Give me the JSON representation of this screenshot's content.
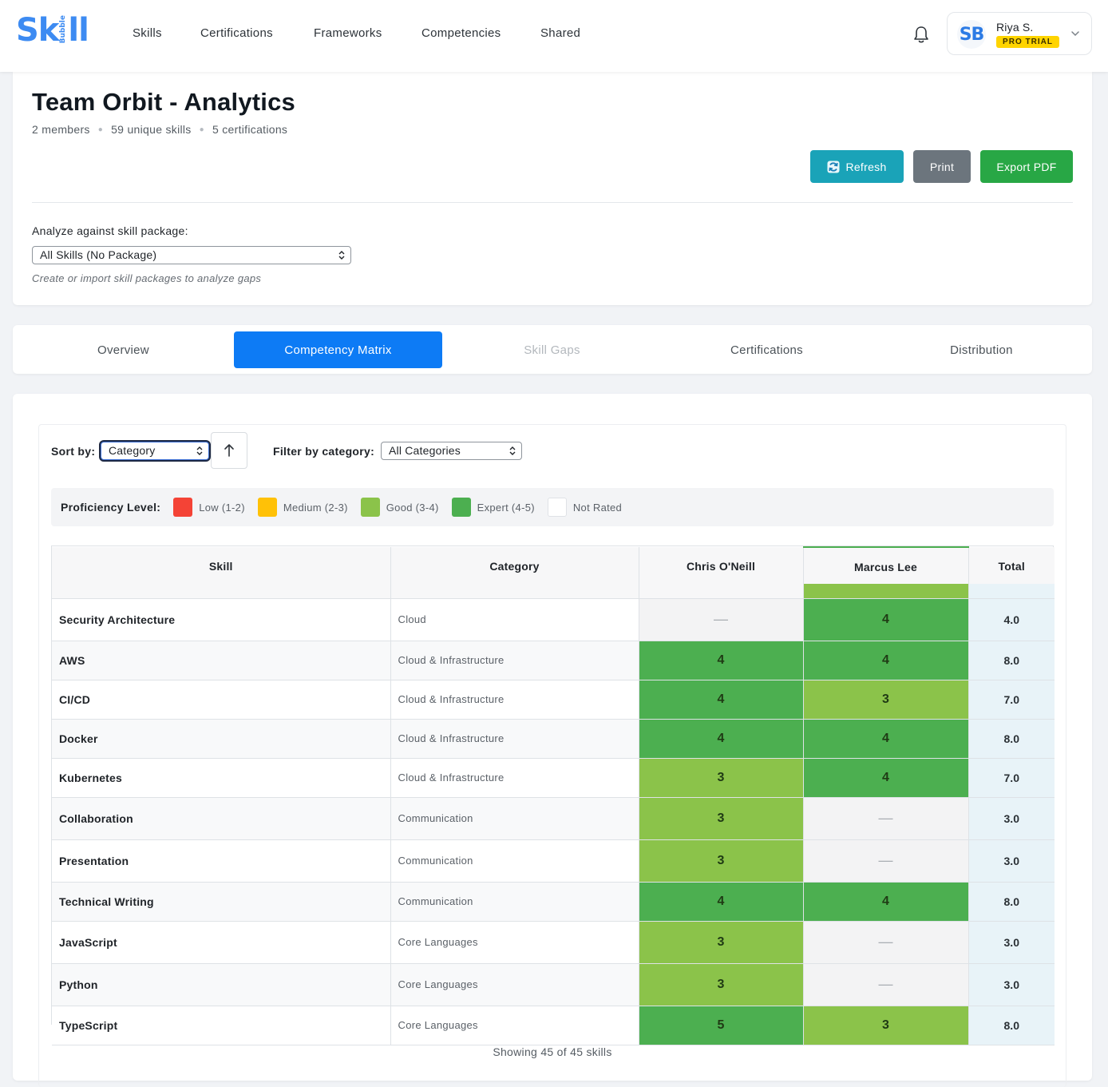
{
  "brand": {
    "logo_main": "Sk",
    "logo_sub": "Bubble",
    "logo_end": "ll"
  },
  "nav": {
    "links": [
      "Skills",
      "Certifications",
      "Frameworks",
      "Competencies",
      "Shared"
    ]
  },
  "user": {
    "initials": "SB",
    "name": "Riya S.",
    "badge": "PRO TRIAL"
  },
  "header": {
    "title": "Team Orbit - Analytics",
    "meta": [
      "2 members",
      "59 unique skills",
      "5 certifications"
    ],
    "buttons": {
      "refresh": "Refresh",
      "print": "Print",
      "export": "Export PDF"
    },
    "package_label": "Analyze against skill package:",
    "package_value": "All Skills (No Package)",
    "package_hint": "Create or import skill packages to analyze gaps"
  },
  "tabs": [
    "Overview",
    "Competency Matrix",
    "Skill Gaps",
    "Certifications",
    "Distribution"
  ],
  "active_tab": 1,
  "controls": {
    "sort_label": "Sort by:",
    "sort_value": "Category",
    "filter_label": "Filter by category:",
    "filter_value": "All Categories"
  },
  "legend": {
    "title": "Proficiency Level:",
    "items": [
      {
        "label": "Low (1-2)",
        "color": "#f44336"
      },
      {
        "label": "Medium (2-3)",
        "color": "#ffc107"
      },
      {
        "label": "Good (3-4)",
        "color": "#8bc34a"
      },
      {
        "label": "Expert (4-5)",
        "color": "#4caf50"
      },
      {
        "label": "Not Rated",
        "color": "#ffffff"
      }
    ]
  },
  "table": {
    "columns": [
      "Skill",
      "Category",
      "Chris O'Neill",
      "Marcus Lee",
      "Total"
    ],
    "rows": [
      {
        "skill": "Security Architecture",
        "category": "Cloud",
        "levels": [
          null,
          4
        ],
        "total": "4.0"
      },
      {
        "skill": "AWS",
        "category": "Cloud & Infrastructure",
        "levels": [
          4,
          4
        ],
        "total": "8.0"
      },
      {
        "skill": "CI/CD",
        "category": "Cloud & Infrastructure",
        "levels": [
          4,
          3
        ],
        "total": "7.0"
      },
      {
        "skill": "Docker",
        "category": "Cloud & Infrastructure",
        "levels": [
          4,
          4
        ],
        "total": "8.0"
      },
      {
        "skill": "Kubernetes",
        "category": "Cloud & Infrastructure",
        "levels": [
          3,
          4
        ],
        "total": "7.0"
      },
      {
        "skill": "Collaboration",
        "category": "Communication",
        "levels": [
          3,
          null
        ],
        "total": "3.0"
      },
      {
        "skill": "Presentation",
        "category": "Communication",
        "levels": [
          3,
          null
        ],
        "total": "3.0"
      },
      {
        "skill": "Technical Writing",
        "category": "Communication",
        "levels": [
          4,
          4
        ],
        "total": "8.0"
      },
      {
        "skill": "JavaScript",
        "category": "Core Languages",
        "levels": [
          3,
          null
        ],
        "total": "3.0"
      },
      {
        "skill": "Python",
        "category": "Core Languages",
        "levels": [
          3,
          null
        ],
        "total": "3.0"
      },
      {
        "skill": "TypeScript",
        "category": "Core Languages",
        "levels": [
          5,
          3
        ],
        "total": "8.0"
      }
    ],
    "empty_mark": "—"
  },
  "footer": "Showing 45 of 45 skills"
}
